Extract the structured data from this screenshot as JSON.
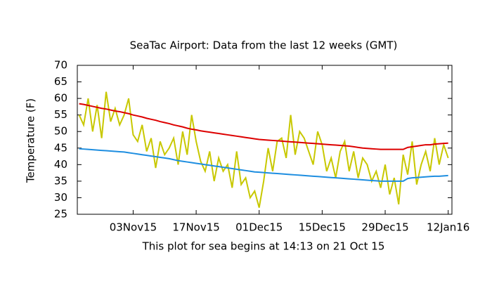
{
  "chart_data": {
    "type": "line",
    "title": "SeaTac Airport:  Data from the last 12 weeks (GMT)",
    "x_label": "This plot for sea begins at 14:13 on 21 Oct 15",
    "y_label": "Temperature (F)",
    "x": [
      "2015-10-22",
      "2015-10-23",
      "2015-10-24",
      "2015-10-25",
      "2015-10-26",
      "2015-10-27",
      "2015-10-28",
      "2015-10-29",
      "2015-10-30",
      "2015-10-31",
      "2015-11-01",
      "2015-11-02",
      "2015-11-03",
      "2015-11-04",
      "2015-11-05",
      "2015-11-06",
      "2015-11-07",
      "2015-11-08",
      "2015-11-09",
      "2015-11-10",
      "2015-11-11",
      "2015-11-12",
      "2015-11-13",
      "2015-11-14",
      "2015-11-15",
      "2015-11-16",
      "2015-11-17",
      "2015-11-18",
      "2015-11-19",
      "2015-11-20",
      "2015-11-21",
      "2015-11-22",
      "2015-11-23",
      "2015-11-24",
      "2015-11-25",
      "2015-11-26",
      "2015-11-27",
      "2015-11-28",
      "2015-11-29",
      "2015-11-30",
      "2015-12-01",
      "2015-12-02",
      "2015-12-03",
      "2015-12-04",
      "2015-12-05",
      "2015-12-06",
      "2015-12-07",
      "2015-12-08",
      "2015-12-09",
      "2015-12-10",
      "2015-12-11",
      "2015-12-12",
      "2015-12-13",
      "2015-12-14",
      "2015-12-15",
      "2015-12-16",
      "2015-12-17",
      "2015-12-18",
      "2015-12-19",
      "2015-12-20",
      "2015-12-21",
      "2015-12-22",
      "2015-12-23",
      "2015-12-24",
      "2015-12-25",
      "2015-12-26",
      "2015-12-27",
      "2015-12-28",
      "2015-12-29",
      "2015-12-30",
      "2015-12-31",
      "2016-01-01",
      "2016-01-02",
      "2016-01-03",
      "2016-01-04",
      "2016-01-05",
      "2016-01-06",
      "2016-01-07",
      "2016-01-08",
      "2016-01-09",
      "2016-01-10",
      "2016-01-11",
      "2016-01-12"
    ],
    "series": [
      {
        "color": "#c8c800",
        "values": [
          55,
          52,
          60,
          50,
          58,
          48,
          62,
          53,
          57,
          52,
          55,
          60,
          49,
          47,
          52,
          44,
          48,
          39,
          47,
          43,
          45,
          48,
          40,
          50,
          43,
          55,
          47,
          41,
          38,
          44,
          35,
          42,
          38,
          40,
          33,
          44,
          34,
          36,
          30,
          32,
          27,
          35,
          45,
          38,
          47,
          48,
          42,
          55,
          43,
          50,
          48,
          44,
          40,
          50,
          46,
          38,
          42,
          36,
          44,
          47,
          38,
          44,
          36,
          42,
          40,
          35,
          38,
          33,
          40,
          31,
          36,
          28,
          43,
          37,
          47,
          34,
          40,
          44,
          38,
          48,
          40,
          46,
          42
        ]
      },
      {
        "color": "#dd0000",
        "values": [
          58.4,
          58.2,
          57.9,
          57.6,
          57.3,
          57,
          56.8,
          56.5,
          56.2,
          56,
          55.7,
          55.4,
          55,
          54.7,
          54.4,
          54,
          53.7,
          53.4,
          53,
          52.7,
          52.4,
          52,
          51.7,
          51.4,
          51,
          50.7,
          50.5,
          50.2,
          50,
          49.8,
          49.6,
          49.4,
          49.2,
          49,
          48.8,
          48.6,
          48.4,
          48.2,
          48,
          47.8,
          47.6,
          47.5,
          47.4,
          47.3,
          47.2,
          47.1,
          47,
          46.9,
          46.8,
          46.7,
          46.6,
          46.5,
          46.4,
          46.3,
          46.2,
          46.1,
          46,
          45.9,
          45.8,
          45.7,
          45.6,
          45.4,
          45.2,
          45,
          44.9,
          44.8,
          44.7,
          44.6,
          44.6,
          44.6,
          44.6,
          44.6,
          44.6,
          45.2,
          45.4,
          45.6,
          45.8,
          46,
          46,
          46.2,
          46.3,
          46.4,
          46.5
        ]
      },
      {
        "color": "#1e8ee0",
        "values": [
          44.8,
          44.7,
          44.6,
          44.5,
          44.4,
          44.3,
          44.2,
          44.1,
          44,
          43.9,
          43.8,
          43.6,
          43.4,
          43.2,
          43,
          42.8,
          42.6,
          42.4,
          42.2,
          42,
          41.8,
          41.5,
          41.2,
          41,
          40.8,
          40.6,
          40.4,
          40.2,
          40,
          39.8,
          39.6,
          39.4,
          39.2,
          39,
          38.8,
          38.6,
          38.4,
          38.2,
          38,
          37.8,
          37.7,
          37.6,
          37.5,
          37.4,
          37.3,
          37.2,
          37.1,
          37,
          36.9,
          36.8,
          36.7,
          36.6,
          36.5,
          36.4,
          36.3,
          36.2,
          36.1,
          36,
          35.9,
          35.8,
          35.7,
          35.6,
          35.5,
          35.4,
          35.3,
          35.2,
          35.1,
          35,
          35,
          35,
          35,
          35,
          35,
          35.8,
          36,
          36.1,
          36.2,
          36.3,
          36.4,
          36.5,
          36.5,
          36.6,
          36.7
        ]
      }
    ],
    "xlim": [
      "2015-10-21T14:13",
      "2016-01-12T20:00"
    ],
    "xticks": [
      {
        "value": "2015-11-03",
        "label": "03Nov15"
      },
      {
        "value": "2015-11-17",
        "label": "17Nov15"
      },
      {
        "value": "2015-12-01",
        "label": "01Dec15"
      },
      {
        "value": "2015-12-15",
        "label": "15Dec15"
      },
      {
        "value": "2015-12-29",
        "label": "29Dec15"
      },
      {
        "value": "2016-01-12",
        "label": "12Jan16"
      }
    ],
    "ylim": [
      25,
      70
    ],
    "yticks": [
      25,
      30,
      35,
      40,
      45,
      50,
      55,
      60,
      65,
      70
    ],
    "grid": false
  }
}
